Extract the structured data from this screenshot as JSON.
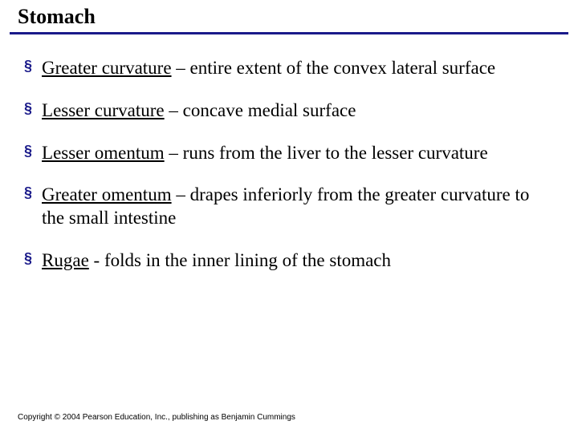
{
  "slide": {
    "title": "Stomach",
    "title_color": "#000000",
    "title_fontsize": 26,
    "rule_color": "#1a1a8a",
    "bullet_color": "#1a1a8a",
    "text_color": "#000000",
    "text_fontsize": 23,
    "background_color": "#ffffff",
    "items": [
      {
        "term": "Greater curvature",
        "desc": " – entire extent of the convex lateral surface"
      },
      {
        "term": "Lesser curvature",
        "desc": " – concave medial surface"
      },
      {
        "term": "Lesser omentum",
        "desc": " – runs from the liver to the lesser curvature"
      },
      {
        "term": "Greater omentum",
        "desc": " – drapes inferiorly from the greater curvature to the small intestine"
      },
      {
        "term": "Rugae",
        "desc": " - folds in the inner lining of the stomach"
      }
    ],
    "copyright": "Copyright © 2004 Pearson Education, Inc., publishing as Benjamin Cummings"
  }
}
